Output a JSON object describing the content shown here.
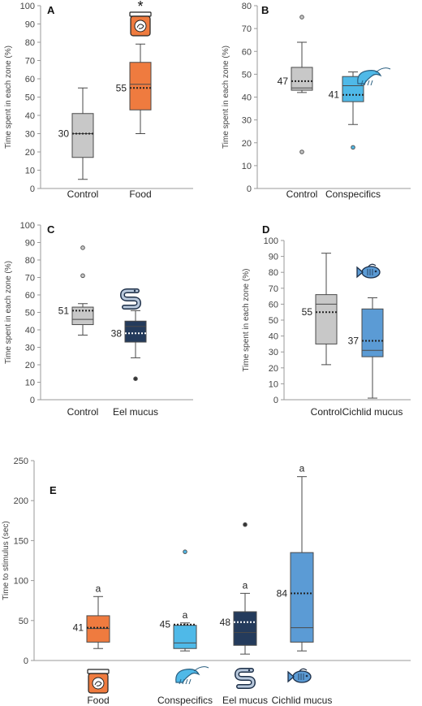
{
  "colors": {
    "axis": "#9a9a9a",
    "text": "#222222",
    "control": "#c8c8c8",
    "food": "#ef7b3f",
    "conspecifics": "#4fb9e8",
    "eel": "#243b5c",
    "cichlid": "#5b9bd5",
    "outline": "#4a4a4a"
  },
  "icons": {
    "food": "food-jar-icon",
    "conspecifics": "shrimp-icon",
    "eel": "eel-icon",
    "cichlid": "cichlid-fish-icon"
  },
  "chart_data": [
    {
      "type": "box",
      "panel": "A",
      "ylabel": "Time spent in each zone (%)",
      "ylim": [
        0,
        100
      ],
      "yticks": [
        "0",
        "10",
        "20",
        "30",
        "40",
        "50",
        "60",
        "70",
        "80",
        "90",
        "100"
      ],
      "categories": [
        "Control",
        "Food"
      ],
      "significance": "*",
      "boxes": [
        {
          "category": "Control",
          "min": 5,
          "q1": 17,
          "median": 30,
          "q3": 41,
          "max": 55,
          "mean": 30,
          "mean_label": "30",
          "outliers": []
        },
        {
          "category": "Food",
          "min": 30,
          "q1": 43,
          "median": 57,
          "q3": 69,
          "max": 79,
          "mean": 55,
          "mean_label": "55",
          "outliers": []
        }
      ]
    },
    {
      "type": "box",
      "panel": "B",
      "ylabel": "Time spent in each zone (%)",
      "ylim": [
        0,
        80
      ],
      "yticks": [
        "0",
        "10",
        "20",
        "30",
        "40",
        "50",
        "60",
        "70",
        "80"
      ],
      "categories": [
        "Control",
        "Conspecifics"
      ],
      "boxes": [
        {
          "category": "Control",
          "min": 42,
          "q1": 43,
          "median": 44,
          "q3": 53,
          "max": 64,
          "mean": 47,
          "mean_label": "47",
          "outliers": [
            75,
            16
          ]
        },
        {
          "category": "Conspecifics",
          "min": 28,
          "q1": 38,
          "median": 45,
          "q3": 49,
          "max": 51,
          "mean": 41,
          "mean_label": "41",
          "outliers": [
            18
          ]
        }
      ]
    },
    {
      "type": "box",
      "panel": "C",
      "ylabel": "Time spent in each zone (%)",
      "ylim": [
        0,
        100
      ],
      "yticks": [
        "0",
        "10",
        "20",
        "30",
        "40",
        "50",
        "60",
        "70",
        "80",
        "90",
        "100"
      ],
      "categories": [
        "Control",
        "Eel mucus"
      ],
      "boxes": [
        {
          "category": "Control",
          "min": 37,
          "q1": 43,
          "median": 46,
          "q3": 53,
          "max": 55,
          "mean": 51,
          "mean_label": "51",
          "outliers": [
            87,
            71
          ]
        },
        {
          "category": "Eel mucus",
          "min": 24,
          "q1": 33,
          "median": 42,
          "q3": 45,
          "max": 51,
          "mean": 38,
          "mean_label": "38",
          "outliers": [
            12
          ]
        }
      ]
    },
    {
      "type": "box",
      "panel": "D",
      "ylabel": "Time spent in each zone (%)",
      "ylim": [
        0,
        100
      ],
      "yticks": [
        "0",
        "10",
        "20",
        "30",
        "40",
        "50",
        "60",
        "70",
        "80",
        "90",
        "100"
      ],
      "categories": [
        "Control",
        "Cichlid mucus"
      ],
      "boxes": [
        {
          "category": "Control",
          "min": 22,
          "q1": 35,
          "median": 60,
          "q3": 66,
          "max": 92,
          "mean": 55,
          "mean_label": "55",
          "outliers": []
        },
        {
          "category": "Cichlid mucus",
          "min": 1,
          "q1": 27,
          "median": 31,
          "q3": 57,
          "max": 64,
          "mean": 37,
          "mean_label": "37",
          "outliers": []
        }
      ]
    },
    {
      "type": "box",
      "panel": "E",
      "ylabel": "Time to stimulus (sec)",
      "ylim": [
        0,
        250
      ],
      "yticks": [
        "0",
        "50",
        "100",
        "150",
        "200",
        "250"
      ],
      "categories": [
        "Food",
        "Conspecifics",
        "Eel mucus",
        "Cichlid mucus"
      ],
      "boxes": [
        {
          "category": "Food",
          "min": 15,
          "q1": 23,
          "median": 40,
          "q3": 56,
          "max": 80,
          "mean": 41,
          "mean_label": "41",
          "group_letter": "a",
          "outliers": []
        },
        {
          "category": "Conspecifics",
          "min": 12,
          "q1": 15,
          "median": 22,
          "q3": 44,
          "max": 47,
          "mean": 45,
          "mean_label": "45",
          "group_letter": "a",
          "outliers": [
            136
          ]
        },
        {
          "category": "Eel mucus",
          "min": 8,
          "q1": 19,
          "median": 35,
          "q3": 61,
          "max": 84,
          "mean": 48,
          "mean_label": "48",
          "group_letter": "a",
          "outliers": [
            170
          ]
        },
        {
          "category": "Cichlid mucus",
          "min": 12,
          "q1": 23,
          "median": 41,
          "q3": 135,
          "max": 230,
          "mean": 84,
          "mean_label": "84",
          "group_letter": "a",
          "outliers": []
        }
      ]
    }
  ]
}
